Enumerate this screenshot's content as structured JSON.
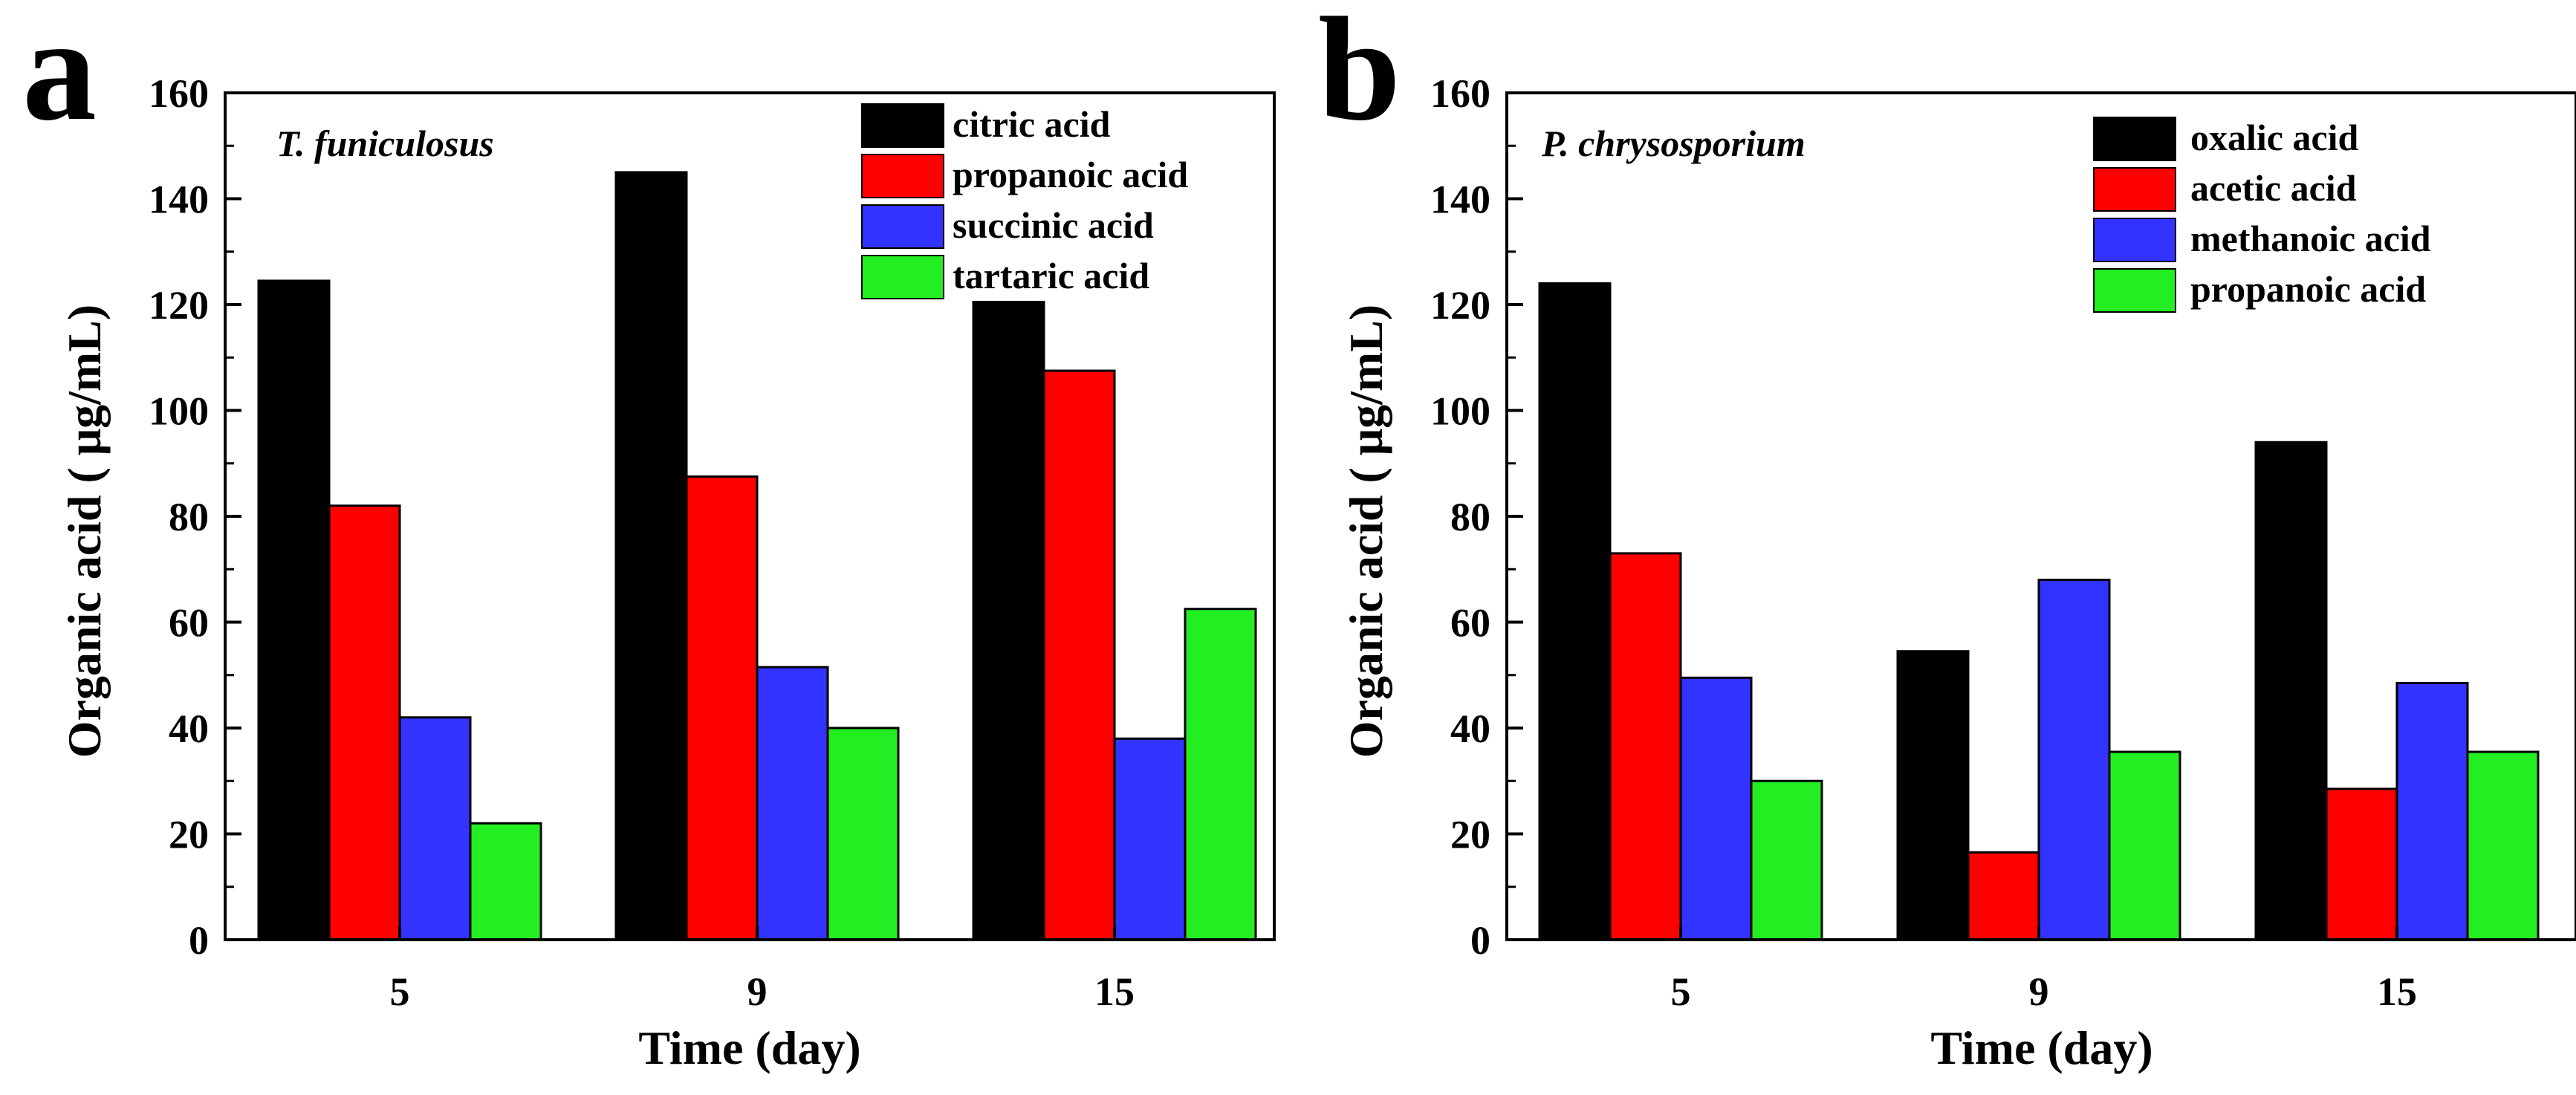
{
  "chart_data": [
    {
      "type": "bar",
      "panel_label": "a",
      "species": "T. funiculosus",
      "xlabel": "Time (day)",
      "ylabel": "Organic acid ( μg/mL)",
      "ylim": [
        0,
        160
      ],
      "yticks": [
        0,
        20,
        40,
        60,
        80,
        100,
        120,
        140,
        160
      ],
      "grid": false,
      "legend_position": "top-right",
      "categories": [
        "5",
        "9",
        "15"
      ],
      "series": [
        {
          "name": "citric acid",
          "color": "#000000",
          "values": [
            124.5,
            145,
            120.5
          ]
        },
        {
          "name": "propanoic acid",
          "color": "#ff0000",
          "values": [
            82,
            87.5,
            107.5
          ]
        },
        {
          "name": "succinic acid",
          "color": "#3333ff",
          "values": [
            42,
            51.5,
            38
          ]
        },
        {
          "name": "tartaric acid",
          "color": "#22ee22",
          "values": [
            22,
            40,
            62.5
          ]
        }
      ]
    },
    {
      "type": "bar",
      "panel_label": "b",
      "species": "P. chrysosporium",
      "xlabel": "Time (day)",
      "ylabel": "Organic acid ( μg/mL)",
      "ylim": [
        0,
        160
      ],
      "yticks": [
        0,
        20,
        40,
        60,
        80,
        100,
        120,
        140,
        160
      ],
      "grid": false,
      "legend_position": "top-right",
      "categories": [
        "5",
        "9",
        "15"
      ],
      "series": [
        {
          "name": "oxalic acid",
          "color": "#000000",
          "values": [
            124,
            54.5,
            94
          ]
        },
        {
          "name": "acetic acid",
          "color": "#ff0000",
          "values": [
            73,
            16.5,
            28.5
          ]
        },
        {
          "name": "methanoic acid",
          "color": "#3333ff",
          "values": [
            49.5,
            68,
            48.5
          ]
        },
        {
          "name": "propanoic acid",
          "color": "#22ee22",
          "values": [
            30,
            35.5,
            35.5
          ]
        }
      ]
    }
  ]
}
